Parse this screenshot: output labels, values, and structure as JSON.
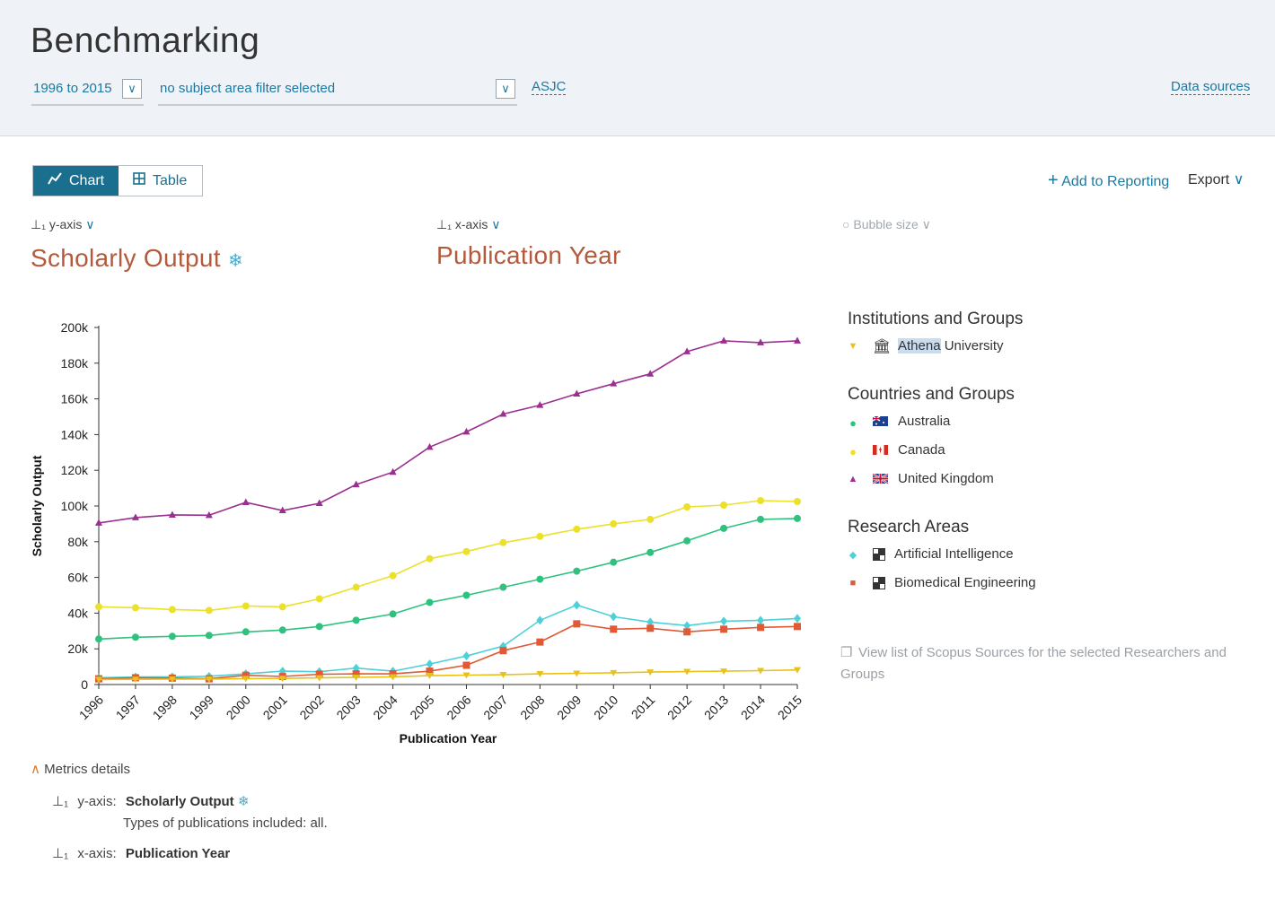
{
  "header": {
    "title": "Benchmarking",
    "date_range": "1996 to 2015",
    "subject_filter": "no subject area filter selected",
    "asjc_link": "ASJC",
    "data_sources_link": "Data sources"
  },
  "toolbar": {
    "chart_tab": "Chart",
    "table_tab": "Table",
    "add_reporting": "Add to Reporting",
    "export": "Export"
  },
  "axes": {
    "y_label": "y-axis",
    "x_label": "x-axis",
    "bubble_label": "Bubble size",
    "y_metric": "Scholarly Output",
    "x_metric": "Publication Year"
  },
  "legend": {
    "institutions_heading": "Institutions and Groups",
    "institution": {
      "name_part1": "Athena",
      "name_part2": " University",
      "color": "#e8c21a"
    },
    "countries_heading": "Countries and Groups",
    "countries": [
      {
        "name": "Australia",
        "color": "#2ec27e"
      },
      {
        "name": "Canada",
        "color": "#ebe12a"
      },
      {
        "name": "United Kingdom",
        "color": "#9b2f8f"
      }
    ],
    "research_heading": "Research Areas",
    "research": [
      {
        "name": "Artificial Intelligence",
        "color": "#4dd0d8"
      },
      {
        "name": "Biomedical Engineering",
        "color": "#e15a35"
      }
    ],
    "view_list": "View list of Scopus Sources for the selected Researchers and Groups"
  },
  "details": {
    "toggle": "Metrics details",
    "y_prefix": "y-axis:",
    "y_metric": "Scholarly Output",
    "y_note": "Types of publications included: all.",
    "x_prefix": "x-axis:",
    "x_metric": "Publication Year"
  },
  "chart_data": {
    "type": "line",
    "title": "",
    "xlabel": "Publication Year",
    "ylabel": "Scholarly Output",
    "ylim": [
      0,
      200000
    ],
    "yticks": [
      0,
      20000,
      40000,
      60000,
      80000,
      100000,
      120000,
      140000,
      160000,
      180000,
      200000
    ],
    "ytick_labels": [
      "0",
      "20k",
      "40k",
      "60k",
      "80k",
      "100k",
      "120k",
      "140k",
      "160k",
      "180k",
      "200k"
    ],
    "categories": [
      "1996",
      "1997",
      "1998",
      "1999",
      "2000",
      "2001",
      "2002",
      "2003",
      "2004",
      "2005",
      "2006",
      "2007",
      "2008",
      "2009",
      "2010",
      "2011",
      "2012",
      "2013",
      "2014",
      "2015"
    ],
    "series": [
      {
        "name": "United Kingdom",
        "color": "#9b2f8f",
        "marker": "triangle",
        "values": [
          90500,
          93500,
          95000,
          94800,
          102000,
          97500,
          101500,
          112000,
          119000,
          133000,
          141500,
          151500,
          156500,
          162800,
          168500,
          174000,
          186500,
          192500,
          191500,
          192500
        ]
      },
      {
        "name": "Canada",
        "color": "#ebe12a",
        "marker": "circle",
        "values": [
          43500,
          43000,
          42000,
          41500,
          44000,
          43500,
          48000,
          54500,
          61000,
          70500,
          74500,
          79500,
          83000,
          87000,
          90000,
          92500,
          99500,
          100500,
          103000,
          102500
        ]
      },
      {
        "name": "Australia",
        "color": "#2ec27e",
        "marker": "circle",
        "values": [
          25500,
          26500,
          27000,
          27500,
          29500,
          30500,
          32500,
          36000,
          39500,
          46000,
          50000,
          54500,
          59000,
          63500,
          68500,
          74000,
          80500,
          87500,
          92500,
          93000
        ]
      },
      {
        "name": "Artificial Intelligence",
        "color": "#4dd0d8",
        "marker": "diamond",
        "values": [
          3800,
          4200,
          4300,
          4600,
          6000,
          7500,
          7200,
          9200,
          7500,
          11500,
          16000,
          21500,
          36000,
          44500,
          38000,
          35000,
          33000,
          35500,
          36000,
          37000
        ]
      },
      {
        "name": "Biomedical Engineering",
        "color": "#e15a35",
        "marker": "square",
        "values": [
          3200,
          3800,
          3600,
          3200,
          5200,
          4500,
          5800,
          6000,
          6000,
          7500,
          10800,
          19000,
          23800,
          34000,
          31000,
          31500,
          29500,
          31000,
          32000,
          32500
        ]
      },
      {
        "name": "Athena University",
        "color": "#e8c21a",
        "marker": "triangle-down",
        "values": [
          2800,
          2900,
          3000,
          3000,
          3300,
          3400,
          3700,
          4000,
          4300,
          5000,
          5300,
          5500,
          6000,
          6300,
          6600,
          7000,
          7300,
          7500,
          7800,
          8200
        ]
      }
    ]
  }
}
